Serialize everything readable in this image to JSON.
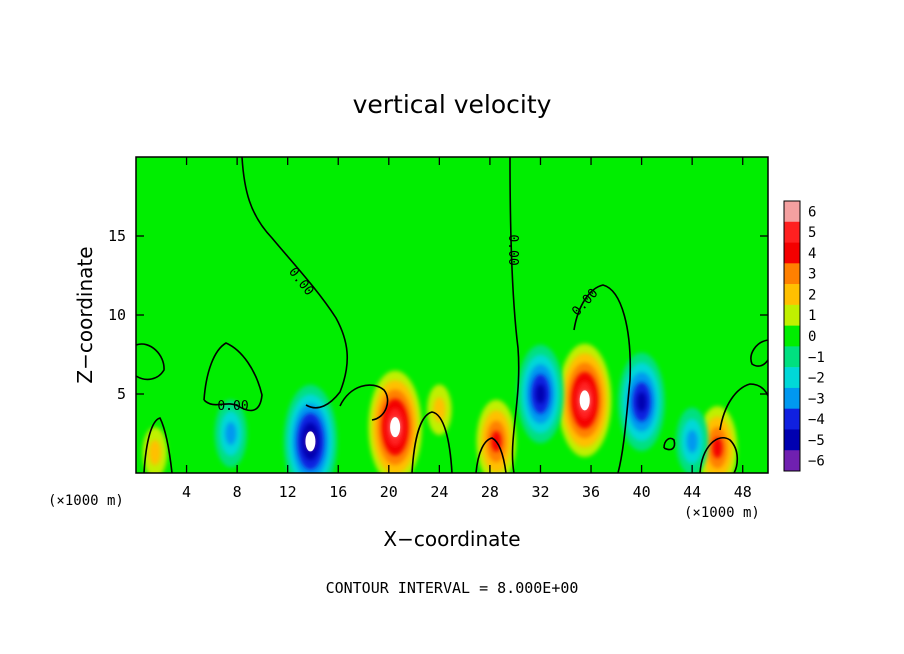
{
  "chart_data": {
    "type": "heatmap",
    "title": "vertical velocity",
    "xlabel": "X−coordinate",
    "ylabel": "Z−coordinate",
    "x_unit_label": "(×1000 m)",
    "z_unit_label": "(×1000 m)",
    "footer": "CONTOUR INTERVAL = 8.000E+00",
    "xlim": [
      0,
      50
    ],
    "ylim": [
      0,
      20
    ],
    "x_ticks": [
      4,
      8,
      12,
      16,
      20,
      24,
      28,
      32,
      36,
      40,
      44,
      48
    ],
    "y_ticks": [
      5,
      10,
      15
    ],
    "color_scale": {
      "levels": [
        6,
        5,
        4,
        3,
        2,
        1,
        0,
        -1,
        -2,
        -3,
        -4,
        -5,
        -6
      ],
      "colors": [
        "#f4a0a0",
        "#ff2020",
        "#f40000",
        "#ff8000",
        "#ffc000",
        "#c0f000",
        "#00ee00",
        "#00e080",
        "#00d8d8",
        "#0098f0",
        "#1020e0",
        "#0000b0",
        "#7020b0"
      ]
    },
    "contour_labels": [
      "0.00",
      "0.00",
      "0.00",
      "0.00"
    ],
    "features": [
      {
        "x": 20.5,
        "z": 2.9,
        "w": 5.5,
        "kind": "updraft"
      },
      {
        "x": 35.5,
        "z": 4.6,
        "w": 6.0,
        "kind": "updraft"
      },
      {
        "x": 28.5,
        "z": 2.0,
        "w": 3.5,
        "kind": "updraft"
      },
      {
        "x": 46.0,
        "z": 1.6,
        "w": 4.0,
        "kind": "updraft"
      },
      {
        "x": 13.8,
        "z": 2.0,
        "w": -6.0,
        "kind": "downdraft"
      },
      {
        "x": 32.0,
        "z": 5.0,
        "w": -4.5,
        "kind": "downdraft"
      },
      {
        "x": 40.0,
        "z": 4.5,
        "w": -4.5,
        "kind": "downdraft"
      },
      {
        "x": 7.5,
        "z": 2.5,
        "w": -2.5,
        "kind": "downdraft"
      },
      {
        "x": 44.0,
        "z": 2.0,
        "w": -2.5,
        "kind": "downdraft"
      },
      {
        "x": 1.5,
        "z": 1.3,
        "w": 2.0,
        "kind": "updraft"
      },
      {
        "x": 24.0,
        "z": 4.0,
        "w": 1.5,
        "kind": "updraft"
      }
    ]
  }
}
